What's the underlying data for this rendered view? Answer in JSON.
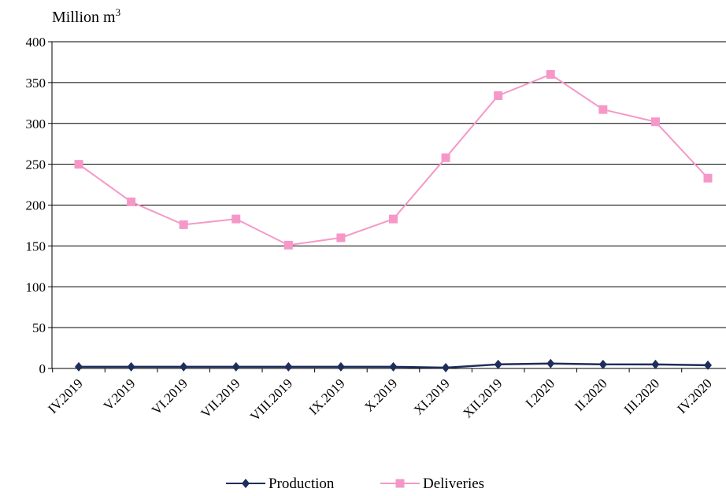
{
  "chart_data": {
    "type": "line",
    "unit_label": "Million m",
    "unit_superscript": "3",
    "categories": [
      "IV.2019",
      "V.2019",
      "VI.2019",
      "VII.2019",
      "VIII.2019",
      "IX.2019",
      "X.2019",
      "XI.2019",
      "XII.2019",
      "I.2020",
      "II.2020",
      "III.2020",
      "IV.2020"
    ],
    "series": [
      {
        "name": "Production",
        "color": "#1f2d5c",
        "marker": "diamond",
        "values": [
          2,
          2,
          2,
          2,
          2,
          2,
          2,
          1,
          5,
          6,
          5,
          5,
          4
        ]
      },
      {
        "name": "Deliveries",
        "color": "#f598c8",
        "marker": "square",
        "values": [
          250,
          204,
          176,
          183,
          151,
          160,
          183,
          258,
          334,
          360,
          317,
          302,
          233
        ]
      }
    ],
    "ylim": [
      0,
      400
    ],
    "yticks": [
      0,
      50,
      100,
      150,
      200,
      250,
      300,
      350,
      400
    ],
    "grid": true,
    "legend_position": "bottom"
  }
}
